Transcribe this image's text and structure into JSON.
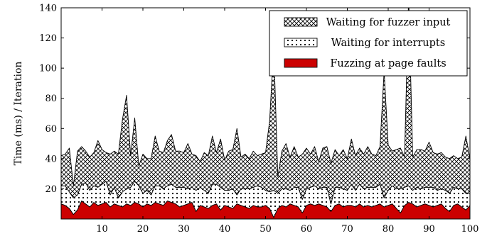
{
  "chart_data": {
    "type": "area",
    "stacked": true,
    "ylabel": "Time (ms) / Iteration",
    "xlabel": "",
    "xlim": [
      0,
      100
    ],
    "ylim": [
      0,
      140
    ],
    "xticks": [
      10,
      20,
      30,
      40,
      50,
      60,
      70,
      80,
      90,
      100
    ],
    "yticks": [
      20,
      40,
      60,
      80,
      100,
      120,
      140
    ],
    "grid": false,
    "legend": "top-right",
    "legend_order": [
      2,
      1,
      0
    ],
    "x": [
      0,
      1,
      2,
      3,
      4,
      5,
      6,
      7,
      8,
      9,
      10,
      11,
      12,
      13,
      14,
      15,
      16,
      17,
      18,
      19,
      20,
      21,
      22,
      23,
      24,
      25,
      26,
      27,
      28,
      29,
      30,
      31,
      32,
      33,
      34,
      35,
      36,
      37,
      38,
      39,
      40,
      41,
      42,
      43,
      44,
      45,
      46,
      47,
      48,
      49,
      50,
      51,
      52,
      53,
      54,
      55,
      56,
      57,
      58,
      59,
      60,
      61,
      62,
      63,
      64,
      65,
      66,
      67,
      68,
      69,
      70,
      71,
      72,
      73,
      74,
      75,
      76,
      77,
      78,
      79,
      80,
      81,
      82,
      83,
      84,
      85,
      86,
      87,
      88,
      89,
      90,
      91,
      92,
      93,
      94,
      95,
      96,
      97,
      98,
      99,
      100
    ],
    "series": [
      {
        "name": "Fuzzing at page faults",
        "pattern": "solid",
        "color": "#cc0000",
        "values": [
          10,
          9,
          7,
          3,
          6,
          12,
          10,
          8,
          11,
          9,
          10,
          11,
          8,
          10,
          9,
          8,
          10,
          9,
          11,
          10,
          8,
          10,
          9,
          11,
          10,
          9,
          12,
          11,
          10,
          8,
          9,
          10,
          11,
          5,
          9,
          8,
          7,
          9,
          10,
          6,
          9,
          8,
          7,
          10,
          9,
          8,
          7,
          9,
          8,
          8,
          9,
          7,
          1,
          7,
          9,
          8,
          10,
          9,
          8,
          4,
          9,
          10,
          9,
          10,
          9,
          8,
          5,
          9,
          10,
          8,
          9,
          9,
          8,
          10,
          8,
          9,
          8,
          9,
          10,
          8,
          9,
          10,
          7,
          4,
          9,
          11,
          10,
          8,
          9,
          10,
          9,
          8,
          9,
          10,
          7,
          5,
          9,
          10,
          8,
          6,
          9
        ]
      },
      {
        "name": "Waiting for interrupts",
        "pattern": "dots",
        "color": "#000000",
        "values": [
          12,
          13,
          11,
          11,
          10,
          11,
          14,
          11,
          11,
          12,
          13,
          14,
          8,
          11,
          5,
          10,
          10,
          12,
          14,
          12,
          9,
          9,
          7,
          11,
          12,
          11,
          10,
          12,
          11,
          13,
          12,
          10,
          10,
          14,
          12,
          11,
          10,
          14,
          13,
          15,
          10,
          11,
          13,
          6,
          11,
          12,
          13,
          12,
          14,
          13,
          10,
          11,
          18,
          10,
          11,
          12,
          9,
          12,
          13,
          9,
          11,
          11,
          13,
          10,
          12,
          13,
          5,
          12,
          11,
          12,
          10,
          14,
          11,
          13,
          12,
          12,
          13,
          12,
          13,
          6,
          10,
          12,
          13,
          16,
          12,
          11,
          9,
          13,
          11,
          11,
          12,
          13,
          10,
          10,
          12,
          12,
          12,
          10,
          12,
          11,
          8
        ]
      },
      {
        "name": "Waiting for fuzzer input",
        "pattern": "crosshatch",
        "color": "#000000",
        "values": [
          20,
          21,
          29,
          8,
          29,
          25,
          21,
          22,
          22,
          31,
          23,
          19,
          27,
          24,
          29,
          48,
          62,
          21,
          42,
          13,
          26,
          21,
          24,
          33,
          23,
          24,
          30,
          33,
          24,
          24,
          23,
          30,
          22,
          23,
          17,
          25,
          25,
          32,
          21,
          32,
          20,
          26,
          26,
          44,
          21,
          23,
          20,
          24,
          20,
          22,
          25,
          47,
          96,
          11,
          25,
          30,
          22,
          27,
          20,
          30,
          27,
          22,
          26,
          18,
          26,
          27,
          27,
          25,
          21,
          26,
          21,
          30,
          23,
          24,
          23,
          27,
          22,
          21,
          25,
          84,
          30,
          23,
          26,
          27,
          20,
          126,
          22,
          25,
          26,
          24,
          30,
          23,
          24,
          24,
          22,
          23,
          21,
          20,
          21,
          38,
          23
        ]
      }
    ]
  }
}
